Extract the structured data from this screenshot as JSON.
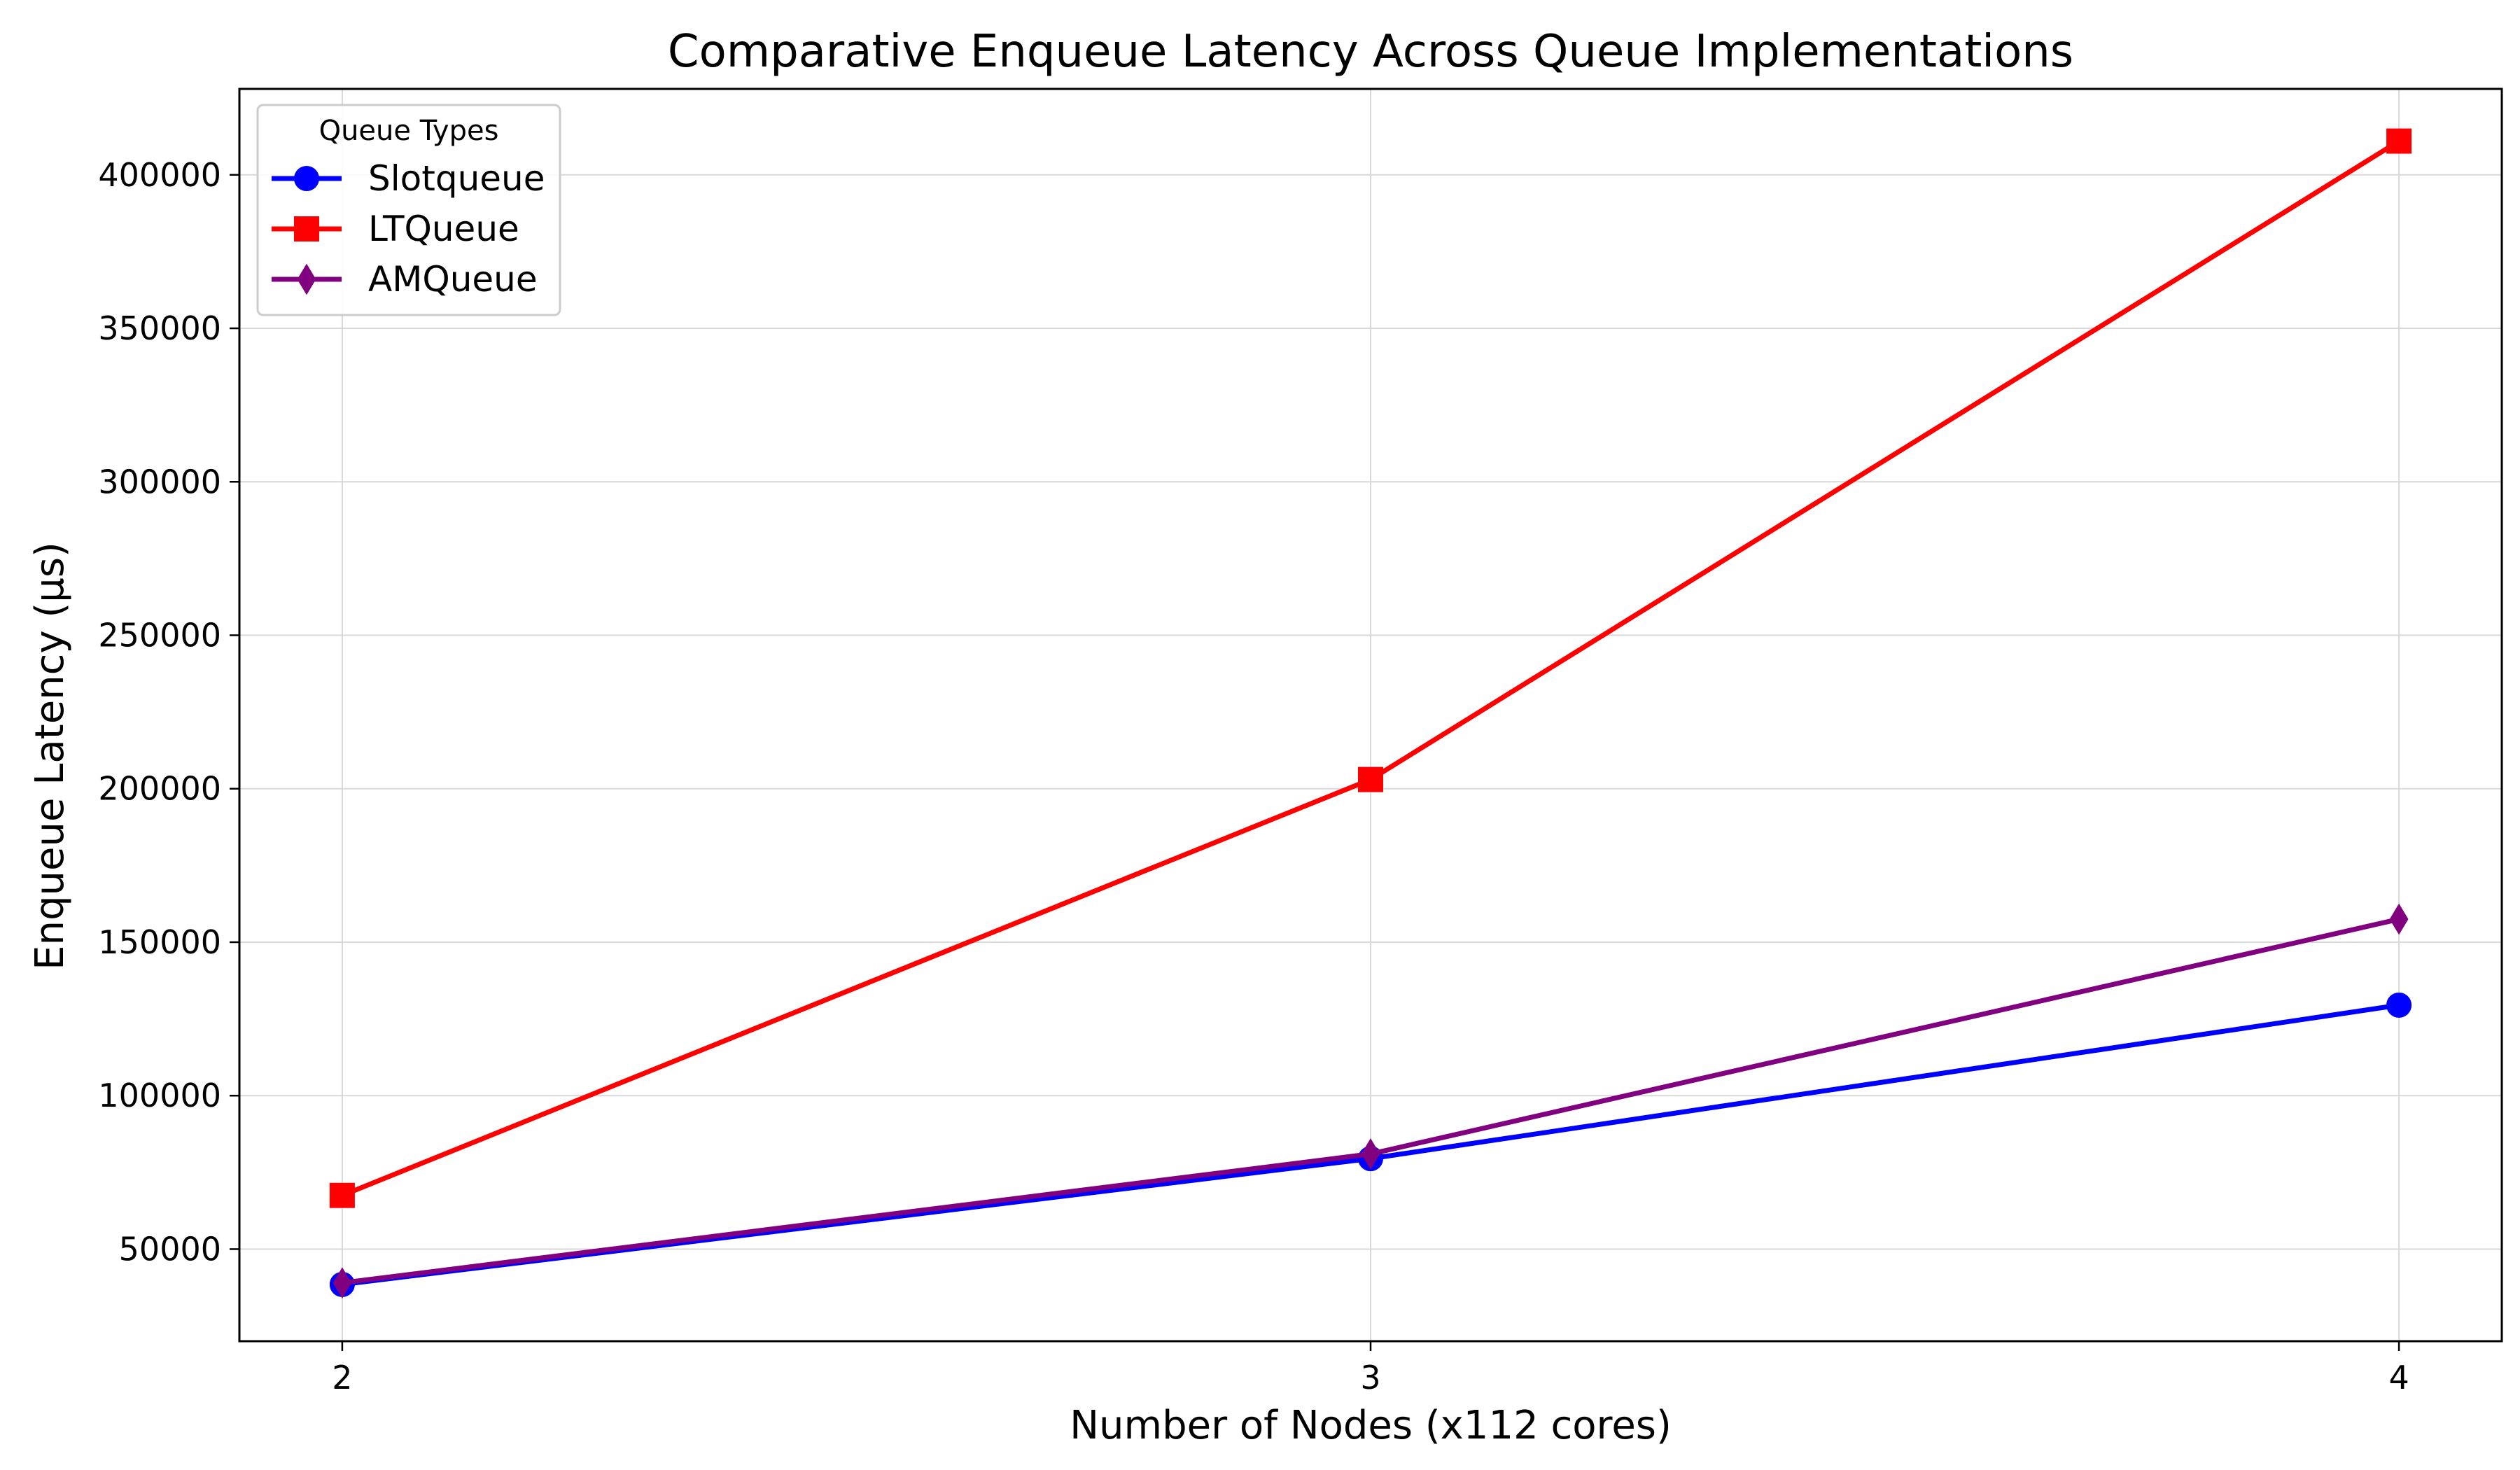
{
  "chart_data": {
    "type": "line",
    "title": "Comparative Enqueue Latency Across Queue Implementations",
    "xlabel": "Number of Nodes (x112 cores)",
    "ylabel": "Enqueue Latency (μs)",
    "x": [
      2,
      3,
      4
    ],
    "x_tick_labels": [
      "2",
      "3",
      "4"
    ],
    "xlim": [
      1.9,
      4.1
    ],
    "ylim": [
      20000,
      428000
    ],
    "y_ticks": [
      50000,
      100000,
      150000,
      200000,
      250000,
      300000,
      350000,
      400000
    ],
    "y_tick_labels": [
      "50000",
      "100000",
      "150000",
      "200000",
      "250000",
      "300000",
      "350000",
      "400000"
    ],
    "grid": true,
    "legend": {
      "title": "Queue Types",
      "position": "top-left"
    },
    "series": [
      {
        "name": "Slotqueue",
        "values": [
          38500,
          79500,
          129500
        ],
        "color": "#0000ff",
        "marker": "circle"
      },
      {
        "name": "LTQueue",
        "values": [
          67500,
          203000,
          411000
        ],
        "color": "#ff0000",
        "marker": "square"
      },
      {
        "name": "AMQueue",
        "values": [
          39000,
          81000,
          157500
        ],
        "color": "#800080",
        "marker": "diamond"
      }
    ]
  }
}
